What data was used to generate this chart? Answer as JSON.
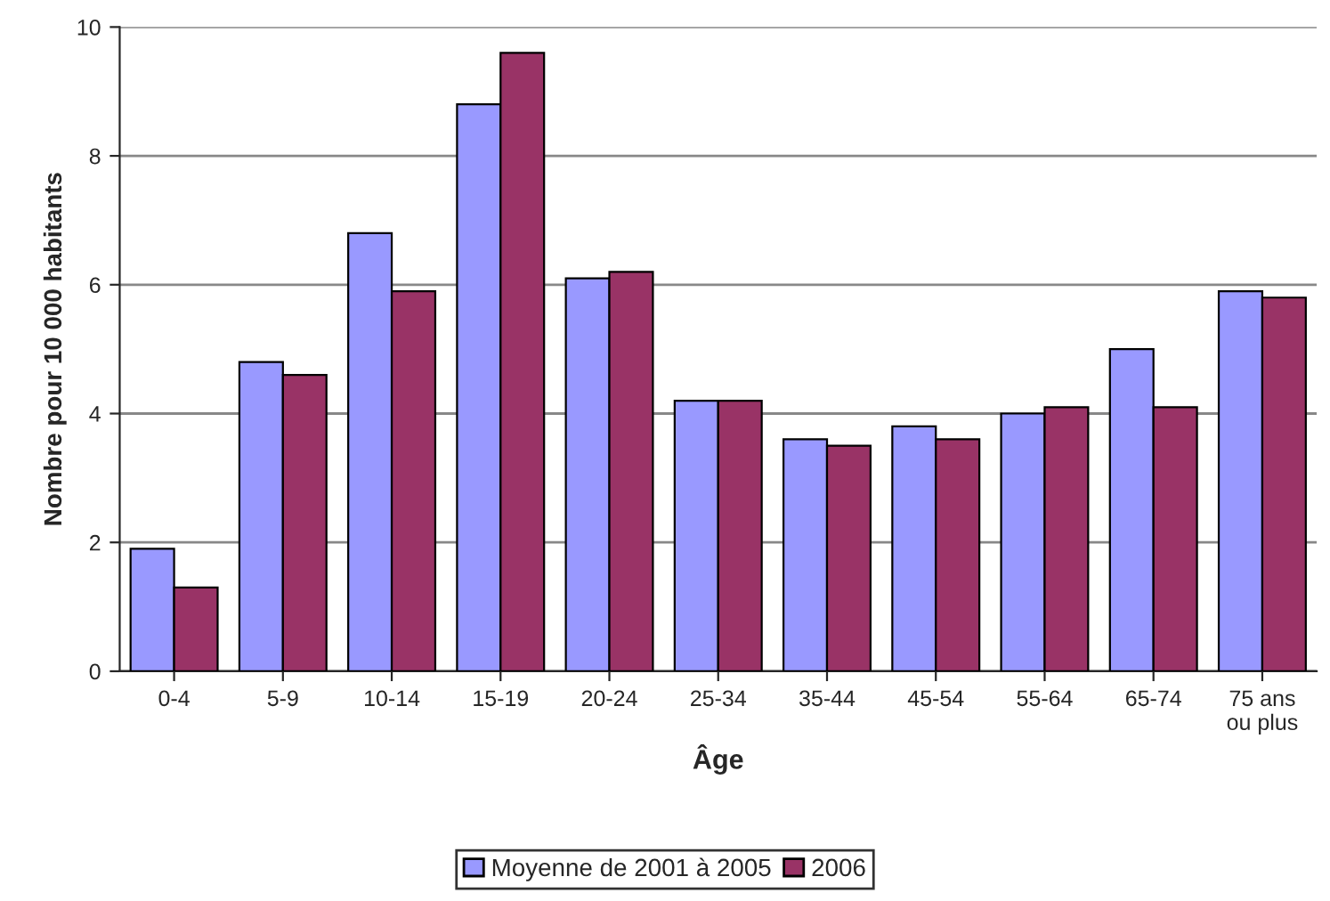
{
  "chart_data": {
    "type": "bar",
    "xlabel": "Âge",
    "ylabel": "Nombre pour 10 000 habitants",
    "categories": [
      "0-4",
      "5-9",
      "10-14",
      "15-19",
      "20-24",
      "25-34",
      "35-44",
      "45-54",
      "55-64",
      "65-74",
      "75 ans\nou plus"
    ],
    "series": [
      {
        "name": "Moyenne de 2001 à 2005",
        "color": "#9999ff",
        "values": [
          1.9,
          4.8,
          6.8,
          8.8,
          6.1,
          4.2,
          3.6,
          3.8,
          4.0,
          5.0,
          5.9
        ]
      },
      {
        "name": "2006",
        "color": "#993366",
        "values": [
          1.3,
          4.6,
          5.9,
          9.6,
          6.2,
          4.2,
          3.5,
          3.6,
          4.1,
          4.1,
          5.8
        ]
      }
    ],
    "ylim": [
      0,
      10
    ],
    "yticks": [
      0,
      2,
      4,
      6,
      8,
      10
    ],
    "grid": "y",
    "legend": "bottom"
  }
}
